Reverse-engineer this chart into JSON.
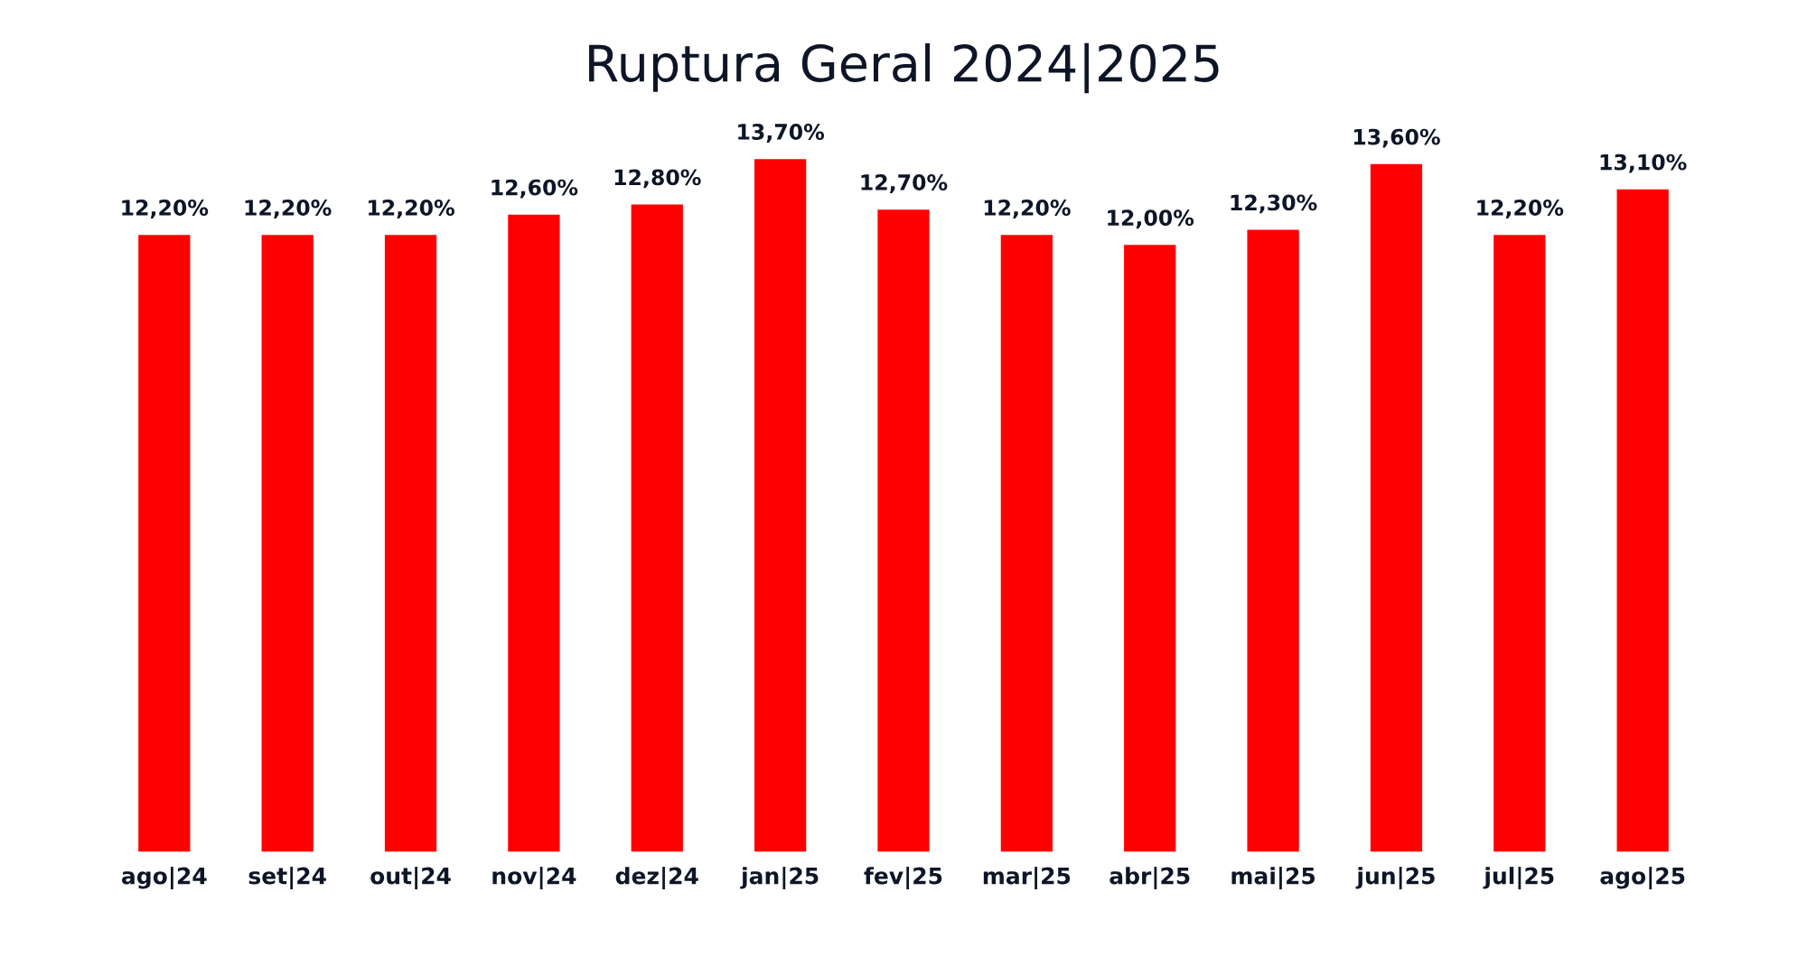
{
  "chart_data": {
    "type": "bar",
    "title": "Ruptura Geral 2024|2025",
    "categories": [
      "ago|24",
      "set|24",
      "out|24",
      "nov|24",
      "dez|24",
      "jan|25",
      "fev|25",
      "mar|25",
      "abr|25",
      "mai|25",
      "jun|25",
      "jul|25",
      "ago|25"
    ],
    "values": [
      12.2,
      12.2,
      12.2,
      12.6,
      12.8,
      13.7,
      12.7,
      12.2,
      12.0,
      12.3,
      13.6,
      12.2,
      13.1
    ],
    "value_labels": [
      "12,20%",
      "12,20%",
      "12,20%",
      "12,60%",
      "12,80%",
      "13,70%",
      "12,70%",
      "12,20%",
      "12,00%",
      "12,30%",
      "13,60%",
      "12,20%",
      "13,10%"
    ],
    "color": "#ff0000",
    "grid": false,
    "legend": false,
    "tick_labels": "x"
  }
}
